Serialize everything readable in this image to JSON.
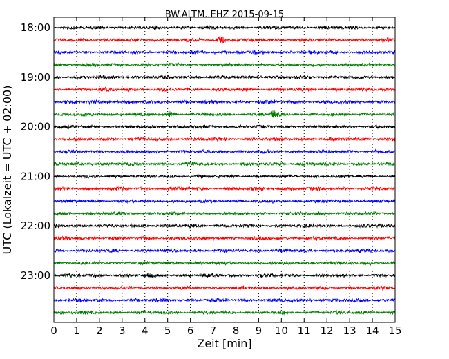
{
  "chart_data": {
    "type": "line",
    "title": "BW.ALTM..EHZ 2015-09-15",
    "xlabel": "Zeit  [min]",
    "ylabel": "UTC (Lokalzeit = UTC + 02:00)",
    "xlim": [
      0,
      15
    ],
    "x_ticks": [
      "0",
      "1",
      "2",
      "3",
      "4",
      "5",
      "6",
      "7",
      "8",
      "9",
      "10",
      "11",
      "12",
      "13",
      "14",
      "15"
    ],
    "y_ticks": [
      "18:00",
      "19:00",
      "20:00",
      "21:00",
      "22:00",
      "23:00"
    ],
    "grid": "vertical-dotted",
    "trace_colors": [
      "#000000",
      "#ff0000",
      "#0000ff",
      "#008000"
    ],
    "series": [
      {
        "start": "18:00",
        "color": "#000000"
      },
      {
        "start": "18:15",
        "color": "#ff0000"
      },
      {
        "start": "18:30",
        "color": "#0000ff"
      },
      {
        "start": "18:45",
        "color": "#008000"
      },
      {
        "start": "19:00",
        "color": "#000000"
      },
      {
        "start": "19:15",
        "color": "#ff0000"
      },
      {
        "start": "19:30",
        "color": "#0000ff"
      },
      {
        "start": "19:45",
        "color": "#008000"
      },
      {
        "start": "20:00",
        "color": "#000000"
      },
      {
        "start": "20:15",
        "color": "#ff0000"
      },
      {
        "start": "20:30",
        "color": "#0000ff"
      },
      {
        "start": "20:45",
        "color": "#008000"
      },
      {
        "start": "21:00",
        "color": "#000000"
      },
      {
        "start": "21:15",
        "color": "#ff0000"
      },
      {
        "start": "21:30",
        "color": "#0000ff"
      },
      {
        "start": "21:45",
        "color": "#008000"
      },
      {
        "start": "22:00",
        "color": "#000000"
      },
      {
        "start": "22:15",
        "color": "#ff0000"
      },
      {
        "start": "22:30",
        "color": "#0000ff"
      },
      {
        "start": "22:45",
        "color": "#008000"
      },
      {
        "start": "23:00",
        "color": "#000000"
      },
      {
        "start": "23:15",
        "color": "#ff0000"
      },
      {
        "start": "23:30",
        "color": "#0000ff"
      },
      {
        "start": "23:45",
        "color": "#008000"
      }
    ],
    "events": [
      {
        "start": "18:15",
        "minute": 7.35
      },
      {
        "start": "19:45",
        "minute": 5.15
      },
      {
        "start": "19:45",
        "minute": 9.7
      }
    ]
  }
}
